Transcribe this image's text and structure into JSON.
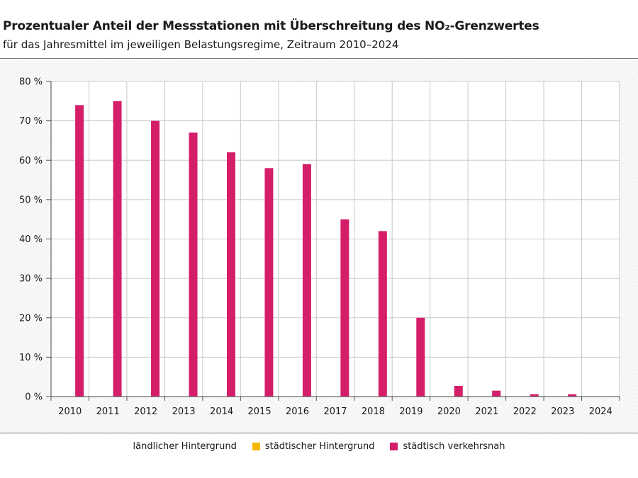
{
  "chart_data": {
    "type": "bar",
    "title": "Prozentualer Anteil der Messstationen mit Überschreitung des NO₂-Grenzwertes",
    "subtitle": "für das Jahresmittel im jeweiligen Belastungsregime, Zeitraum 2010–2024",
    "categories": [
      "2010",
      "2011",
      "2012",
      "2013",
      "2014",
      "2015",
      "2016",
      "2017",
      "2018",
      "2019",
      "2020",
      "2021",
      "2022",
      "2023",
      "2024"
    ],
    "series": [
      {
        "name": "ländlicher Hintergrund",
        "color": "#ffffff",
        "values": [
          0,
          0,
          0,
          0,
          0,
          0,
          0,
          0,
          0,
          0,
          0,
          0,
          0,
          0,
          0
        ]
      },
      {
        "name": "städtischer Hintergrund",
        "color": "#f5b800",
        "values": [
          0,
          0,
          0,
          0,
          0,
          0,
          0,
          0,
          0,
          0,
          0,
          0,
          0,
          0,
          0
        ]
      },
      {
        "name": "städtisch verkehrsnah",
        "color": "#d41e6a",
        "values": [
          74,
          75,
          70,
          67,
          62,
          58,
          59,
          45,
          42,
          20,
          2.7,
          1.5,
          0.6,
          0.6,
          0
        ]
      }
    ],
    "ylim": [
      0,
      80
    ],
    "yticks": [
      0,
      10,
      20,
      30,
      40,
      50,
      60,
      70,
      80
    ],
    "ytick_labels": [
      "0 %",
      "10 %",
      "20 %",
      "30 %",
      "40 %",
      "50 %",
      "60 %",
      "70 %",
      "80 %"
    ],
    "grid": true,
    "legend_position": "bottom",
    "xlabel": "",
    "ylabel": ""
  }
}
